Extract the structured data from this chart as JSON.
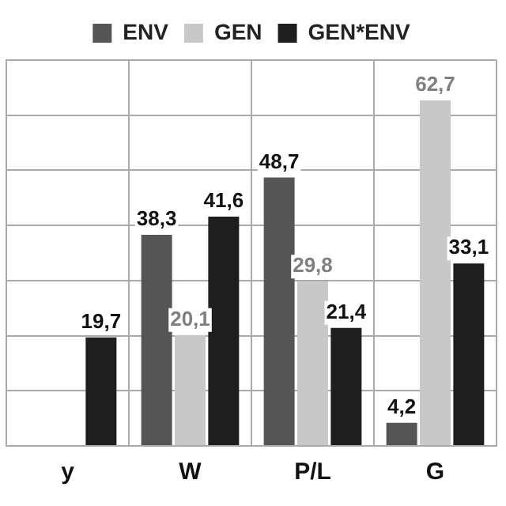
{
  "chart_data": {
    "type": "bar",
    "categories": [
      "y",
      "W",
      "P/L",
      "G"
    ],
    "series": [
      {
        "name": "ENV",
        "color": "#555555",
        "values": [
          null,
          38.3,
          48.7,
          4.2
        ],
        "value_labels": [
          null,
          "38,3",
          "48,7",
          "4,2"
        ]
      },
      {
        "name": "GEN",
        "color": "#c8c8c8",
        "values": [
          null,
          20.1,
          29.8,
          62.7
        ],
        "value_labels": [
          null,
          "20,1",
          "29,8",
          "62,7"
        ]
      },
      {
        "name": "GEN*ENV",
        "color": "#1e1e1e",
        "values": [
          19.7,
          41.6,
          21.4,
          33.1
        ],
        "value_labels": [
          "19,7",
          "41,6",
          "21,4",
          "33,1"
        ]
      }
    ],
    "tick_labels": "x",
    "grid": true,
    "legend": "top"
  }
}
